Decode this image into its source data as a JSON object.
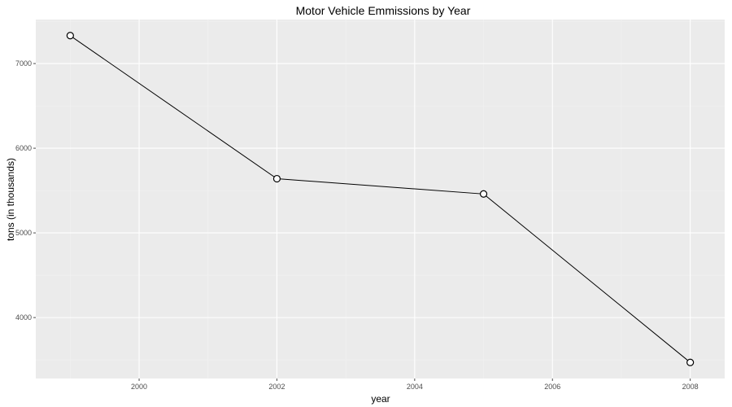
{
  "chart_data": {
    "type": "line",
    "title": "Motor Vehicle Emmissions by Year",
    "xlabel": "year",
    "ylabel": "tons (in thousands)",
    "x": [
      1999,
      2002,
      2005,
      2008
    ],
    "y": [
      7330,
      5640,
      5460,
      3470
    ],
    "xlim": [
      1998.5,
      2008.5
    ],
    "ylim": [
      3280,
      7520
    ],
    "x_ticks": [
      2000,
      2002,
      2004,
      2006,
      2008
    ],
    "x_minor_ticks": [
      1999,
      2001,
      2003,
      2005,
      2007
    ],
    "y_ticks": [
      4000,
      5000,
      6000,
      7000
    ],
    "y_minor_ticks": [
      3500,
      4500,
      5500,
      6500,
      7500
    ],
    "x_tick_labels": [
      "2000",
      "2002",
      "2004",
      "2006",
      "2008"
    ],
    "y_tick_labels": [
      "4000",
      "5000",
      "6000",
      "7000"
    ],
    "marker": "open-circle",
    "grid": true,
    "legend": "none",
    "colors": {
      "panel_background": "#ebebeb",
      "grid_major": "#ffffff",
      "line": "#000000",
      "point_fill": "#ffffff",
      "tick_text": "#4d4d4d"
    }
  }
}
